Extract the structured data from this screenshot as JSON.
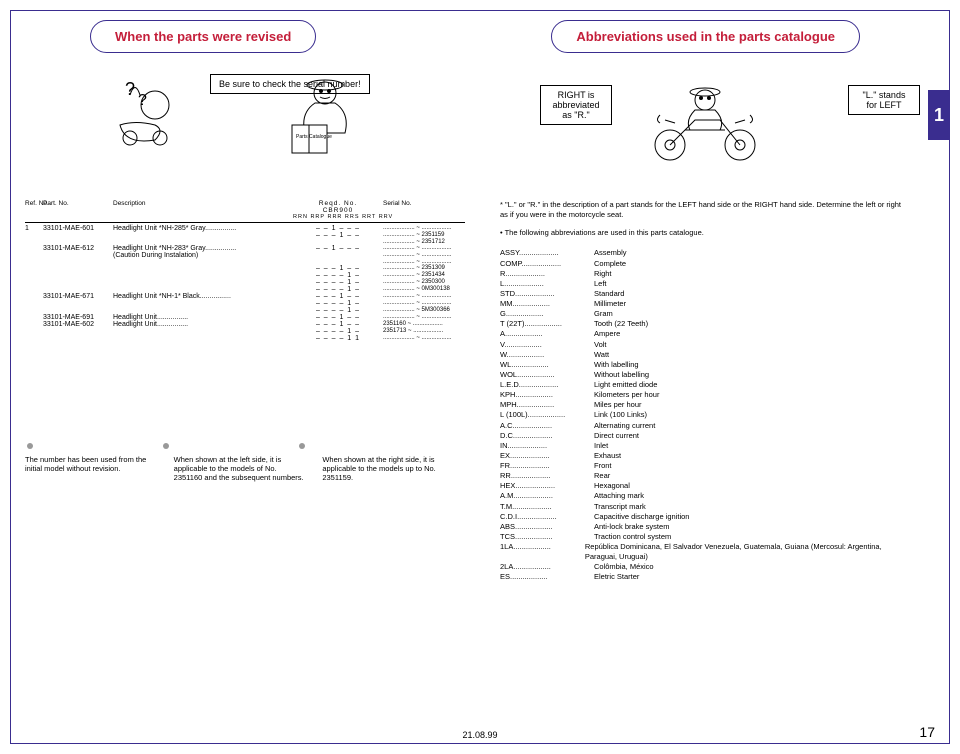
{
  "titles": {
    "left": "When the parts were revised",
    "right": "Abbreviations used in the parts catalogue",
    "serial_check": "Be sure to check the serial number!",
    "right_abbr": "RIGHT is abbreviated as \"R.\"",
    "left_abbr": "\"L.\" stands for LEFT",
    "page_tab": "1",
    "parts_cat_label": "Parts Catalogue"
  },
  "table": {
    "headers": {
      "ref": "Ref. No.",
      "part": "Part. No.",
      "desc": "Description",
      "regd": "Reqd. No.",
      "model": "CBR900",
      "codes": "RRN RRP RRR RRS RRT RRV",
      "serial": "Serial No."
    },
    "rows": [
      {
        "ref": "1",
        "part": "33101-MAE-601",
        "desc": "Headlight Unit *NH-285* Gray",
        "dashes": "– – 1 – – –",
        "serial": "................... ~ .................."
      },
      {
        "ref": "",
        "part": "",
        "desc": "",
        "dashes": "– – – 1 – –",
        "serial": "................... ~ 2351159"
      },
      {
        "ref": "",
        "part": "",
        "desc": "",
        "dashes": "",
        "serial": "................... ~ 2351712"
      },
      {
        "ref": "",
        "part": "33101-MAE-612",
        "desc": "Headlight Unit *NH-283* Gray",
        "dashes": "– – 1 – – –",
        "serial": "................... ~ .................."
      },
      {
        "ref": "",
        "part": "",
        "desc": "(Caution During Instalation)",
        "dashes": "",
        "serial": "................... ~ .................."
      },
      {
        "ref": "",
        "part": "",
        "desc": "",
        "dashes": "",
        "serial": "................... ~ .................."
      },
      {
        "ref": "",
        "part": "",
        "desc": "",
        "dashes": "– – – 1 – –",
        "serial": "................... ~ 2351309"
      },
      {
        "ref": "",
        "part": "",
        "desc": "",
        "dashes": "",
        "serial": ""
      },
      {
        "ref": "",
        "part": "",
        "desc": "",
        "dashes": "– – – – 1 –",
        "serial": "................... ~ 2351434"
      },
      {
        "ref": "",
        "part": "",
        "desc": "",
        "dashes": "– – – – 1 –",
        "serial": "................... ~ 2350300"
      },
      {
        "ref": "",
        "part": "",
        "desc": "",
        "dashes": "– – – – 1 –",
        "serial": "................... ~ 0M300138"
      },
      {
        "ref": "",
        "part": "33101-MAE-671",
        "desc": "Headlight Unit *NH-1* Black",
        "dashes": "– – – 1 – –",
        "serial": "................... ~ .................."
      },
      {
        "ref": "",
        "part": "",
        "desc": "",
        "dashes": "– – – – 1 –",
        "serial": "................... ~ .................."
      },
      {
        "ref": "",
        "part": "",
        "desc": "",
        "dashes": "– – – – 1 –",
        "serial": "................... ~ 5M300366"
      },
      {
        "ref": "",
        "part": "33101-MAE-691",
        "desc": "Headlight Unit",
        "dashes": "– – – 1 – –",
        "serial": "................... ~ .................."
      },
      {
        "ref": "",
        "part": "33101-MAE-602",
        "desc": "Headlight Unit",
        "dashes": "– – – 1 – –",
        "serial": "2351160 ~ .................."
      },
      {
        "ref": "",
        "part": "",
        "desc": "",
        "dashes": "– – – – 1 –",
        "serial": "2351713 ~ .................."
      },
      {
        "ref": "",
        "part": "",
        "desc": "",
        "dashes": "– – – – 1 1",
        "serial": "................... ~ .................."
      }
    ]
  },
  "notes": {
    "n1": "The number has been used from the initial model without revision.",
    "n2": "When shown at the left side, it is applicable to the models of No. 2351160 and the subsequent numbers.",
    "n3": "When shown at the right side, it is applicable to the models up to No. 2351159."
  },
  "right_section": {
    "intro1": "* \"L.\" or \"R.\" in the description of a part stands for the LEFT hand side or the RIGHT hand side. Determine the left or right as if you were in the motorcycle seat.",
    "intro2": "• The following abbreviations are used in this parts catalogue.",
    "abbrs": [
      {
        "k": "ASSY.",
        "v": "Assembly"
      },
      {
        "k": "COMP.",
        "v": "Complete"
      },
      {
        "k": "R.",
        "v": "Right"
      },
      {
        "k": "L.",
        "v": "Left"
      },
      {
        "k": "STD.",
        "v": "Standard"
      },
      {
        "k": "MM",
        "v": "Millimeter"
      },
      {
        "k": "G",
        "v": "Gram"
      },
      {
        "k": "T (22T)",
        "v": "Tooth (22 Teeth)"
      },
      {
        "k": "A",
        "v": "Ampere"
      },
      {
        "k": "V",
        "v": "Volt"
      },
      {
        "k": "W",
        "v": "Watt"
      },
      {
        "k": "WL",
        "v": "With labelling"
      },
      {
        "k": "WOL",
        "v": "Without labelling"
      },
      {
        "k": "L.E.D.",
        "v": "Light emitted diode"
      },
      {
        "k": "KPH",
        "v": "Kilometers per hour"
      },
      {
        "k": "MPH",
        "v": "Miles per hour"
      },
      {
        "k": "L (100L)",
        "v": "Link (100 Links)"
      },
      {
        "k": "A.C.",
        "v": "Alternating current"
      },
      {
        "k": "D.C.",
        "v": "Direct current"
      },
      {
        "k": "IN.",
        "v": "Inlet"
      },
      {
        "k": "EX.",
        "v": "Exhaust"
      },
      {
        "k": "FR.",
        "v": "Front"
      },
      {
        "k": "RR.",
        "v": "Rear"
      },
      {
        "k": "HEX.",
        "v": "Hexagonal"
      },
      {
        "k": "A.M.",
        "v": "Attaching mark"
      },
      {
        "k": "T.M.",
        "v": "Transcript mark"
      },
      {
        "k": "C.D.I.",
        "v": "Capacitive discharge ignition"
      },
      {
        "k": "ABS",
        "v": "Anti-lock brake system"
      },
      {
        "k": "TCS",
        "v": "Traction control system"
      },
      {
        "k": "1LA",
        "v": "República Dominicana, El Salvador Venezuela, Guatemala, Guiana (Mercosul: Argentina, Paraguai, Uruguai)"
      },
      {
        "k": "2LA",
        "v": "Colômbia, México"
      },
      {
        "k": "ES",
        "v": "Eletric Starter"
      }
    ]
  },
  "footer": {
    "date": "21.08.99",
    "page": "17"
  },
  "colors": {
    "purple": "#3a2d8f",
    "red": "#c41e3a"
  }
}
